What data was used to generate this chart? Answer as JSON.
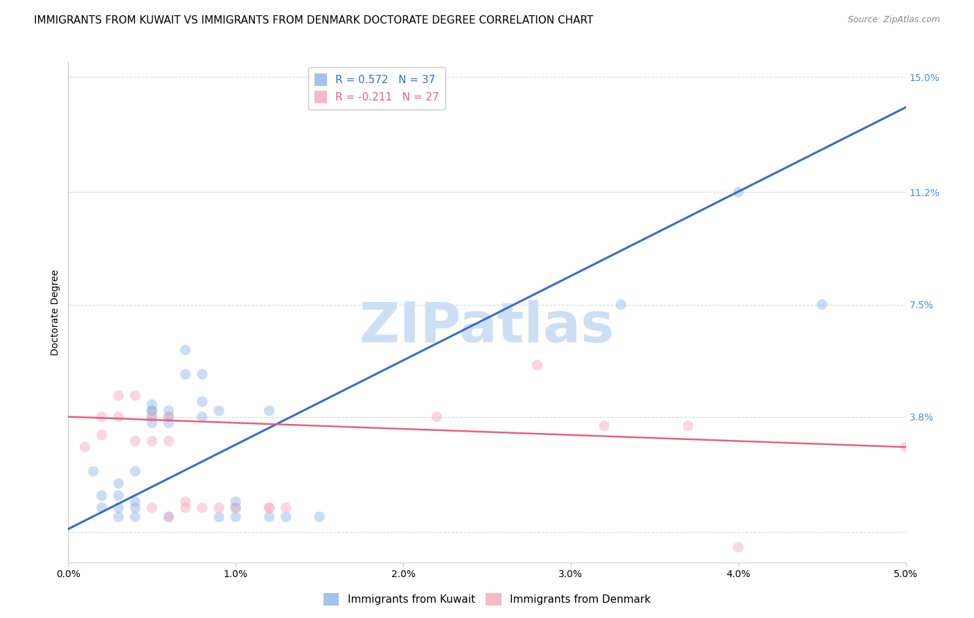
{
  "title": "IMMIGRANTS FROM KUWAIT VS IMMIGRANTS FROM DENMARK DOCTORATE DEGREE CORRELATION CHART",
  "source": "Source: ZipAtlas.com",
  "xlabel_ticks": [
    "0.0%",
    "1.0%",
    "2.0%",
    "3.0%",
    "4.0%",
    "5.0%"
  ],
  "ylabel_ticks": [
    "3.8%",
    "7.5%",
    "11.2%",
    "15.0%"
  ],
  "ylabel_label": "Doctorate Degree",
  "xlim": [
    0.0,
    0.05
  ],
  "ylim": [
    -0.01,
    0.155
  ],
  "ytick_vals": [
    0.038,
    0.075,
    0.112,
    0.15
  ],
  "xtick_vals": [
    0.0,
    0.01,
    0.02,
    0.03,
    0.04,
    0.05
  ],
  "legend1_label": "R = 0.572   N = 37",
  "legend2_label": "R = -0.211   N = 27",
  "legend1_color": "#8ab4e8",
  "legend2_color": "#f4a6b8",
  "blue_line_color": "#3a6bc9",
  "pink_line_color": "#e8607a",
  "watermark": "ZIPatlas",
  "watermark_color": "#ccdff5",
  "blue_scatter": [
    [
      0.0015,
      0.02
    ],
    [
      0.002,
      0.012
    ],
    [
      0.002,
      0.008
    ],
    [
      0.003,
      0.008
    ],
    [
      0.003,
      0.012
    ],
    [
      0.003,
      0.016
    ],
    [
      0.003,
      0.005
    ],
    [
      0.004,
      0.01
    ],
    [
      0.004,
      0.008
    ],
    [
      0.004,
      0.005
    ],
    [
      0.004,
      0.02
    ],
    [
      0.005,
      0.04
    ],
    [
      0.005,
      0.036
    ],
    [
      0.005,
      0.04
    ],
    [
      0.005,
      0.042
    ],
    [
      0.005,
      0.038
    ],
    [
      0.006,
      0.04
    ],
    [
      0.006,
      0.038
    ],
    [
      0.006,
      0.036
    ],
    [
      0.006,
      0.005
    ],
    [
      0.007,
      0.06
    ],
    [
      0.007,
      0.052
    ],
    [
      0.008,
      0.052
    ],
    [
      0.008,
      0.038
    ],
    [
      0.008,
      0.043
    ],
    [
      0.009,
      0.04
    ],
    [
      0.009,
      0.005
    ],
    [
      0.01,
      0.005
    ],
    [
      0.01,
      0.008
    ],
    [
      0.01,
      0.01
    ],
    [
      0.012,
      0.005
    ],
    [
      0.012,
      0.04
    ],
    [
      0.013,
      0.005
    ],
    [
      0.015,
      0.005
    ],
    [
      0.033,
      0.075
    ],
    [
      0.04,
      0.112
    ],
    [
      0.045,
      0.075
    ]
  ],
  "pink_scatter": [
    [
      0.001,
      0.028
    ],
    [
      0.002,
      0.032
    ],
    [
      0.002,
      0.038
    ],
    [
      0.003,
      0.045
    ],
    [
      0.003,
      0.038
    ],
    [
      0.004,
      0.045
    ],
    [
      0.004,
      0.03
    ],
    [
      0.005,
      0.038
    ],
    [
      0.005,
      0.03
    ],
    [
      0.005,
      0.008
    ],
    [
      0.006,
      0.038
    ],
    [
      0.006,
      0.005
    ],
    [
      0.006,
      0.03
    ],
    [
      0.007,
      0.01
    ],
    [
      0.007,
      0.008
    ],
    [
      0.008,
      0.008
    ],
    [
      0.009,
      0.008
    ],
    [
      0.01,
      0.008
    ],
    [
      0.012,
      0.008
    ],
    [
      0.012,
      0.008
    ],
    [
      0.013,
      0.008
    ],
    [
      0.022,
      0.038
    ],
    [
      0.028,
      0.055
    ],
    [
      0.032,
      0.035
    ],
    [
      0.037,
      0.035
    ],
    [
      0.04,
      -0.005
    ],
    [
      0.05,
      0.028
    ]
  ],
  "blue_line_x": [
    0.0,
    0.05
  ],
  "blue_line_y": [
    0.001,
    0.14
  ],
  "pink_line_x": [
    0.0,
    0.05
  ],
  "pink_line_y": [
    0.038,
    0.028
  ],
  "grid_color": "#d8d8d8",
  "bg_color": "#ffffff",
  "title_fontsize": 11,
  "axis_label_fontsize": 10,
  "tick_fontsize": 10,
  "legend_fontsize": 11,
  "source_fontsize": 9,
  "scatter_size": 120,
  "scatter_alpha": 0.45,
  "right_tick_color": "#4a8fd4"
}
